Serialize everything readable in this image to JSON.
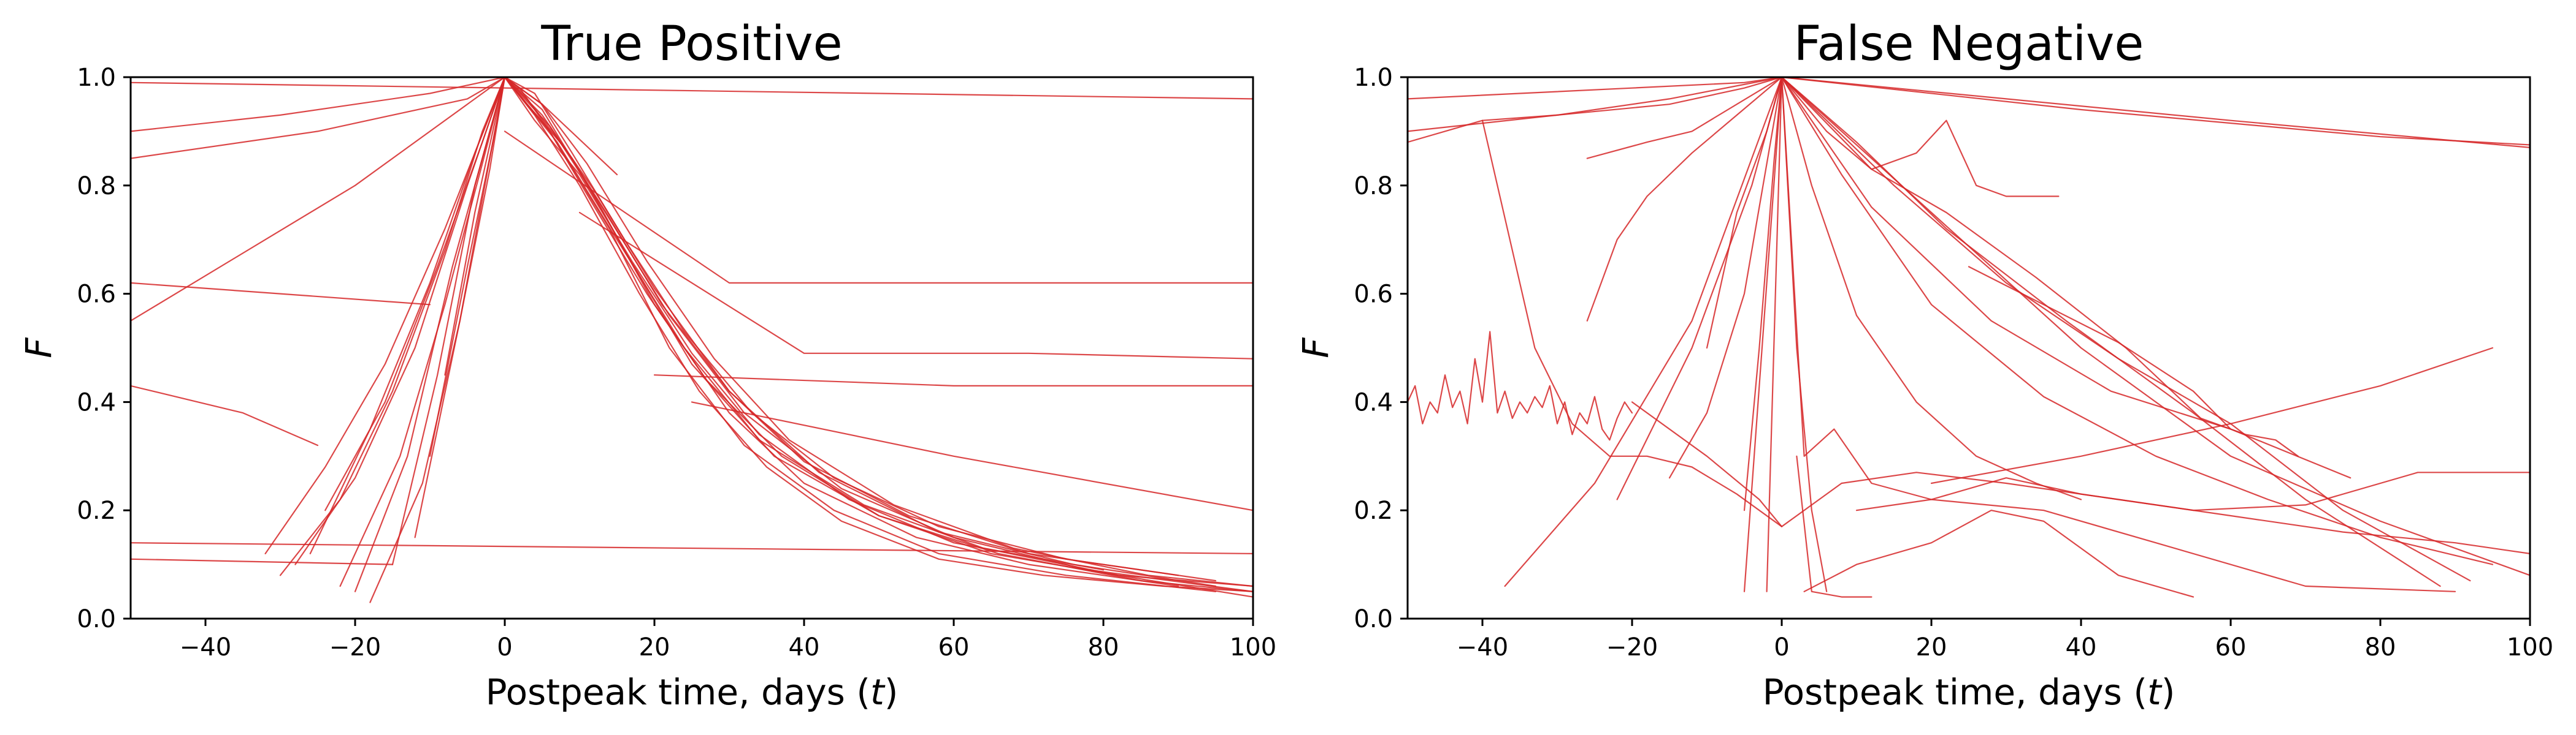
{
  "chart_data": [
    {
      "type": "line",
      "title": "True Positive",
      "xlabel": "Postpeak time, days (t)",
      "ylabel": "F",
      "xlim": [
        -50,
        100
      ],
      "ylim": [
        0.0,
        1.0
      ],
      "xticks": [
        -40,
        -20,
        0,
        20,
        40,
        60,
        80,
        100
      ],
      "yticks": [
        0.0,
        0.2,
        0.4,
        0.6,
        0.8,
        1.0
      ],
      "xtick_labels": [
        "−40",
        "−20",
        "0",
        "20",
        "40",
        "60",
        "80",
        "100"
      ],
      "ytick_labels": [
        "0.0",
        "0.2",
        "0.4",
        "0.6",
        "0.8",
        "1.0"
      ],
      "grid": false,
      "line_color": "#d62728",
      "series": [
        {
          "x": [
            -30,
            -22,
            -15,
            -8,
            -3,
            0,
            4,
            10,
            18,
            26,
            35,
            45,
            58,
            72,
            88,
            100
          ],
          "y": [
            0.08,
            0.22,
            0.42,
            0.68,
            0.9,
            1.0,
            0.93,
            0.8,
            0.6,
            0.42,
            0.28,
            0.18,
            0.11,
            0.08,
            0.06,
            0.05
          ]
        },
        {
          "x": [
            -26,
            -18,
            -10,
            -4,
            0,
            6,
            14,
            22,
            32,
            44,
            58,
            75,
            95
          ],
          "y": [
            0.12,
            0.35,
            0.62,
            0.86,
            1.0,
            0.9,
            0.72,
            0.5,
            0.32,
            0.2,
            0.12,
            0.08,
            0.05
          ]
        },
        {
          "x": [
            -20,
            -13,
            -7,
            -2,
            0,
            5,
            12,
            20,
            30,
            40,
            55,
            70,
            90
          ],
          "y": [
            0.05,
            0.3,
            0.65,
            0.9,
            1.0,
            0.94,
            0.78,
            0.58,
            0.38,
            0.25,
            0.15,
            0.1,
            0.06
          ]
        },
        {
          "x": [
            -15,
            -9,
            -4,
            0,
            3,
            9,
            16,
            25,
            36,
            50,
            66,
            85,
            100
          ],
          "y": [
            0.1,
            0.45,
            0.8,
            1.0,
            0.96,
            0.85,
            0.68,
            0.47,
            0.3,
            0.19,
            0.12,
            0.07,
            0.05
          ]
        },
        {
          "x": [
            -12,
            -6,
            -2,
            0,
            4,
            10,
            17,
            25,
            34,
            46,
            60,
            80
          ],
          "y": [
            0.15,
            0.55,
            0.85,
            1.0,
            0.92,
            0.82,
            0.66,
            0.49,
            0.34,
            0.22,
            0.14,
            0.09
          ]
        },
        {
          "x": [
            -28,
            -20,
            -12,
            -5,
            0,
            7,
            15,
            24,
            34,
            48,
            64,
            82,
            100
          ],
          "y": [
            0.1,
            0.26,
            0.5,
            0.8,
            1.0,
            0.88,
            0.7,
            0.5,
            0.33,
            0.21,
            0.13,
            0.08,
            0.04
          ]
        },
        {
          "x": [
            -24,
            -16,
            -9,
            -3,
            0,
            5,
            11,
            19,
            28,
            38,
            52,
            68,
            86,
            100
          ],
          "y": [
            0.2,
            0.4,
            0.65,
            0.88,
            1.0,
            0.95,
            0.84,
            0.66,
            0.48,
            0.33,
            0.21,
            0.13,
            0.08,
            0.06
          ]
        },
        {
          "x": [
            -18,
            -11,
            -6,
            -2,
            0,
            4,
            9,
            16,
            24,
            33,
            44,
            58,
            75,
            95
          ],
          "y": [
            0.03,
            0.25,
            0.55,
            0.83,
            1.0,
            0.97,
            0.86,
            0.7,
            0.53,
            0.38,
            0.26,
            0.17,
            0.11,
            0.07
          ]
        },
        {
          "x": [
            -10,
            -5,
            -1,
            0,
            3,
            8,
            14,
            21,
            30,
            40,
            54,
            70,
            90
          ],
          "y": [
            0.3,
            0.65,
            0.92,
            1.0,
            0.95,
            0.87,
            0.74,
            0.58,
            0.42,
            0.29,
            0.19,
            0.12,
            0.08
          ]
        },
        {
          "x": [
            -22,
            -14,
            -8,
            -3,
            0,
            6,
            13,
            22,
            32,
            45,
            60,
            78,
            100
          ],
          "y": [
            0.06,
            0.3,
            0.58,
            0.84,
            1.0,
            0.91,
            0.76,
            0.56,
            0.38,
            0.24,
            0.15,
            0.09,
            0.05
          ]
        },
        {
          "x": [
            -8,
            -4,
            0,
            2,
            6,
            12,
            19,
            27,
            37,
            50,
            65,
            82,
            100
          ],
          "y": [
            0.45,
            0.75,
            1.0,
            0.98,
            0.9,
            0.76,
            0.6,
            0.44,
            0.3,
            0.19,
            0.12,
            0.08,
            0.06
          ]
        },
        {
          "x": [
            -32,
            -24,
            -16,
            -8,
            -2,
            0,
            5,
            12,
            20,
            30,
            42,
            58,
            76,
            95
          ],
          "y": [
            0.12,
            0.28,
            0.47,
            0.72,
            0.93,
            1.0,
            0.93,
            0.79,
            0.61,
            0.42,
            0.27,
            0.16,
            0.1,
            0.06
          ]
        },
        {
          "x": [
            -50,
            -30,
            -10,
            0,
            5,
            15
          ],
          "y": [
            0.9,
            0.93,
            0.97,
            1.0,
            0.95,
            0.82
          ]
        },
        {
          "x": [
            -50,
            -25,
            -5,
            0
          ],
          "y": [
            0.85,
            0.9,
            0.96,
            1.0
          ]
        },
        {
          "x": [
            -50,
            -20,
            0
          ],
          "y": [
            0.55,
            0.8,
            1.0
          ]
        },
        {
          "x": [
            -50,
            -35,
            -25
          ],
          "y": [
            0.43,
            0.38,
            0.32
          ]
        },
        {
          "x": [
            -50,
            -30,
            -10
          ],
          "y": [
            0.62,
            0.6,
            0.58
          ]
        },
        {
          "x": [
            -50,
            100
          ],
          "y": [
            0.14,
            0.12
          ]
        },
        {
          "x": [
            -50,
            -15
          ],
          "y": [
            0.11,
            0.1
          ]
        },
        {
          "x": [
            0,
            30,
            60,
            100
          ],
          "y": [
            0.9,
            0.62,
            0.62,
            0.62
          ]
        },
        {
          "x": [
            10,
            40,
            70,
            100
          ],
          "y": [
            0.75,
            0.49,
            0.49,
            0.48
          ]
        },
        {
          "x": [
            20,
            60,
            100
          ],
          "y": [
            0.45,
            0.43,
            0.43
          ]
        },
        {
          "x": [
            25,
            60,
            100
          ],
          "y": [
            0.4,
            0.3,
            0.2
          ]
        },
        {
          "x": [
            -50,
            100
          ],
          "y": [
            0.99,
            0.96
          ]
        }
      ]
    },
    {
      "type": "line",
      "title": "False Negative",
      "xlabel": "Postpeak time, days (t)",
      "ylabel": "F",
      "xlim": [
        -50,
        100
      ],
      "ylim": [
        0.0,
        1.0
      ],
      "xticks": [
        -40,
        -20,
        0,
        20,
        40,
        60,
        80,
        100
      ],
      "yticks": [
        0.0,
        0.2,
        0.4,
        0.6,
        0.8,
        1.0
      ],
      "xtick_labels": [
        "−40",
        "−20",
        "0",
        "20",
        "40",
        "60",
        "80",
        "100"
      ],
      "ytick_labels": [
        "0.0",
        "0.2",
        "0.4",
        "0.6",
        "0.8",
        "1.0"
      ],
      "grid": false,
      "line_color": "#d62728",
      "series": [
        {
          "x": [
            -50,
            -49,
            -48,
            -47,
            -46,
            -45,
            -44,
            -43,
            -42,
            -41,
            -40,
            -39,
            -38,
            -37,
            -36,
            -35,
            -34,
            -33,
            -32,
            -31,
            -30,
            -29,
            -28,
            -27,
            -26,
            -25,
            -24,
            -23,
            -22,
            -21,
            -20
          ],
          "y": [
            0.4,
            0.43,
            0.36,
            0.4,
            0.38,
            0.45,
            0.39,
            0.42,
            0.36,
            0.48,
            0.4,
            0.53,
            0.38,
            0.42,
            0.37,
            0.4,
            0.38,
            0.41,
            0.39,
            0.43,
            0.36,
            0.4,
            0.34,
            0.38,
            0.36,
            0.41,
            0.35,
            0.33,
            0.37,
            0.4,
            0.38
          ]
        },
        {
          "x": [
            -20,
            -10,
            -3,
            0,
            8,
            18,
            30,
            45,
            60,
            75,
            90,
            100
          ],
          "y": [
            0.4,
            0.3,
            0.22,
            0.17,
            0.25,
            0.27,
            0.25,
            0.22,
            0.19,
            0.16,
            0.14,
            0.12
          ]
        },
        {
          "x": [
            -37,
            -25,
            -12,
            -4,
            0,
            10,
            22,
            38,
            55,
            70,
            88
          ],
          "y": [
            0.06,
            0.25,
            0.55,
            0.85,
            1.0,
            0.88,
            0.72,
            0.55,
            0.38,
            0.22,
            0.06
          ]
        },
        {
          "x": [
            -5,
            0,
            8,
            20,
            35,
            50,
            65,
            80,
            95
          ],
          "y": [
            0.05,
            1.0,
            0.82,
            0.58,
            0.41,
            0.3,
            0.22,
            0.15,
            0.1
          ]
        },
        {
          "x": [
            -2,
            0,
            12,
            28,
            44,
            60,
            76
          ],
          "y": [
            0.05,
            1.0,
            0.76,
            0.55,
            0.42,
            0.35,
            0.26
          ]
        },
        {
          "x": [
            0,
            15,
            30,
            45,
            60,
            75,
            92
          ],
          "y": [
            1.0,
            0.8,
            0.62,
            0.48,
            0.36,
            0.2,
            0.07
          ]
        },
        {
          "x": [
            -50,
            -35,
            -20,
            -5,
            0
          ],
          "y": [
            0.96,
            0.97,
            0.98,
            0.99,
            1.0
          ]
        },
        {
          "x": [
            -50,
            -30,
            -15,
            -5,
            0
          ],
          "y": [
            0.9,
            0.93,
            0.95,
            0.98,
            1.0
          ]
        },
        {
          "x": [
            -50,
            -40,
            -30,
            -15,
            0
          ],
          "y": [
            0.88,
            0.92,
            0.93,
            0.96,
            1.0
          ]
        },
        {
          "x": [
            0,
            30,
            60,
            100
          ],
          "y": [
            1.0,
            0.96,
            0.92,
            0.87
          ]
        },
        {
          "x": [
            0,
            40,
            80,
            100
          ],
          "y": [
            1.0,
            0.94,
            0.89,
            0.875
          ]
        },
        {
          "x": [
            -40,
            -33,
            -28,
            -23,
            -18,
            -12,
            -6,
            0
          ],
          "y": [
            0.92,
            0.5,
            0.36,
            0.3,
            0.3,
            0.28,
            0.23,
            0.17
          ]
        },
        {
          "x": [
            -26,
            -18,
            -12,
            -6,
            0
          ],
          "y": [
            0.85,
            0.88,
            0.9,
            0.95,
            1.0
          ]
        },
        {
          "x": [
            -26,
            -22,
            -18,
            -12,
            -6,
            0
          ],
          "y": [
            0.55,
            0.7,
            0.78,
            0.86,
            0.93,
            1.0
          ]
        },
        {
          "x": [
            -22,
            -12,
            -4,
            0
          ],
          "y": [
            0.22,
            0.5,
            0.8,
            1.0
          ]
        },
        {
          "x": [
            -10,
            -6,
            -2,
            0
          ],
          "y": [
            0.5,
            0.75,
            0.9,
            1.0
          ]
        },
        {
          "x": [
            -15,
            -10,
            -5,
            0,
            3,
            7,
            12,
            20,
            35,
            50,
            70,
            90
          ],
          "y": [
            0.26,
            0.38,
            0.6,
            1.0,
            0.3,
            0.35,
            0.25,
            0.22,
            0.2,
            0.14,
            0.06,
            0.05
          ]
        },
        {
          "x": [
            -5,
            -3,
            -1,
            0,
            2,
            4,
            6
          ],
          "y": [
            0.2,
            0.5,
            0.85,
            1.0,
            0.5,
            0.2,
            0.05
          ]
        },
        {
          "x": [
            0,
            4,
            10,
            18,
            26,
            34,
            40
          ],
          "y": [
            1.0,
            0.8,
            0.56,
            0.4,
            0.3,
            0.25,
            0.22
          ]
        },
        {
          "x": [
            0,
            6,
            12,
            18,
            22,
            26,
            30,
            37
          ],
          "y": [
            1.0,
            0.9,
            0.83,
            0.86,
            0.92,
            0.8,
            0.78,
            0.78
          ]
        },
        {
          "x": [
            3,
            10,
            20,
            28,
            35,
            45,
            55
          ],
          "y": [
            0.05,
            0.1,
            0.14,
            0.2,
            0.18,
            0.08,
            0.04
          ]
        },
        {
          "x": [
            20,
            40,
            60,
            80,
            95
          ],
          "y": [
            0.25,
            0.3,
            0.36,
            0.43,
            0.5
          ]
        },
        {
          "x": [
            0,
            12,
            22,
            34,
            46,
            56,
            62,
            66,
            69
          ],
          "y": [
            1.0,
            0.83,
            0.75,
            0.63,
            0.5,
            0.37,
            0.34,
            0.33,
            0.3
          ]
        },
        {
          "x": [
            0,
            20,
            40,
            60,
            80,
            100
          ],
          "y": [
            1.0,
            0.75,
            0.5,
            0.3,
            0.18,
            0.08
          ]
        },
        {
          "x": [
            10,
            20,
            30,
            40,
            55,
            70,
            85,
            100
          ],
          "y": [
            0.2,
            0.22,
            0.26,
            0.23,
            0.2,
            0.21,
            0.27,
            0.27
          ]
        },
        {
          "x": [
            25,
            35,
            45,
            55,
            60
          ],
          "y": [
            0.65,
            0.58,
            0.51,
            0.42,
            0.35
          ]
        },
        {
          "x": [
            2,
            4,
            8,
            12
          ],
          "y": [
            0.3,
            0.05,
            0.04,
            0.04
          ]
        }
      ]
    }
  ]
}
